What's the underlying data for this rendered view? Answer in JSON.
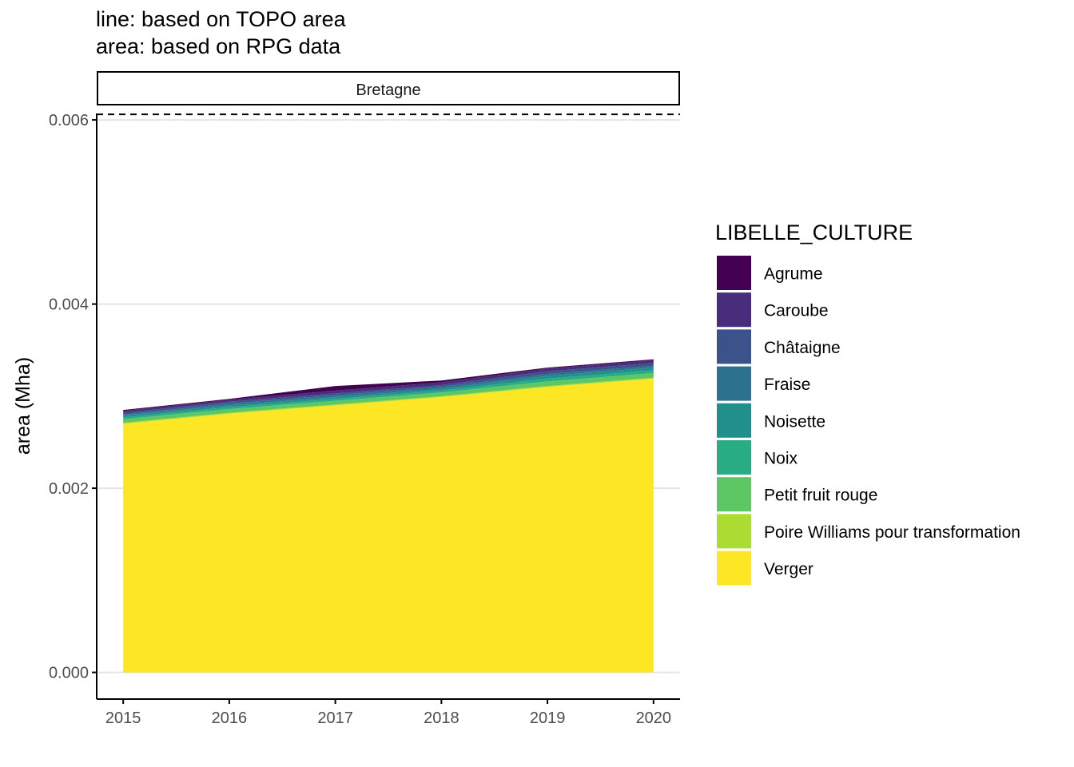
{
  "chart_data": {
    "type": "area",
    "title_lines": [
      "line: based on TOPO area",
      "area: based on RPG data"
    ],
    "facet_label": "Bretagne",
    "ylabel": "area (Mha)",
    "xlabel": "",
    "x": [
      2015,
      2016,
      2017,
      2018,
      2019,
      2020
    ],
    "x_tick_labels": [
      "2015",
      "2016",
      "2017",
      "2018",
      "2019",
      "2020"
    ],
    "ylim": [
      -0.00029,
      0.00607
    ],
    "y_ticks": [
      0.0,
      0.002,
      0.004,
      0.006
    ],
    "y_tick_labels": [
      "0.000",
      "0.002",
      "0.004",
      "0.006"
    ],
    "grid": "horizontal major lines",
    "reference_line": {
      "style": "dashed",
      "y": 0.00606
    },
    "stacked": true,
    "legend_title": "LIBELLE_CULTURE",
    "legend_position": "right",
    "series": [
      {
        "name": "Agrume",
        "color": "#440154",
        "values": [
          1e-05,
          1e-05,
          5e-05,
          2e-05,
          1e-05,
          1e-05
        ]
      },
      {
        "name": "Caroube",
        "color": "#472D7B",
        "values": [
          2e-05,
          2e-05,
          3e-05,
          3e-05,
          3e-05,
          3e-05
        ]
      },
      {
        "name": "Châtaigne",
        "color": "#3B528B",
        "values": [
          2e-05,
          2e-05,
          2e-05,
          2e-05,
          3e-05,
          3e-05
        ]
      },
      {
        "name": "Fraise",
        "color": "#2C728E",
        "values": [
          1e-05,
          2e-05,
          2e-05,
          2e-05,
          2e-05,
          2e-05
        ]
      },
      {
        "name": "Noisette",
        "color": "#21908C",
        "values": [
          2e-05,
          2e-05,
          2e-05,
          2e-05,
          3e-05,
          3e-05
        ]
      },
      {
        "name": "Noix",
        "color": "#27AD81",
        "values": [
          2e-05,
          2e-05,
          2e-05,
          2e-05,
          3e-05,
          3e-05
        ]
      },
      {
        "name": "Petit fruit rouge",
        "color": "#5DC863",
        "values": [
          4e-05,
          4e-05,
          4e-05,
          4e-05,
          5e-05,
          5e-05
        ]
      },
      {
        "name": "Poire Williams pour transformation",
        "color": "#AADC32",
        "values": [
          1e-05,
          1e-05,
          1e-05,
          1e-05,
          1e-05,
          1e-05
        ]
      },
      {
        "name": "Verger",
        "color": "#FDE725",
        "values": [
          0.0027,
          0.00281,
          0.0029,
          0.00299,
          0.0031,
          0.00319
        ]
      }
    ]
  }
}
